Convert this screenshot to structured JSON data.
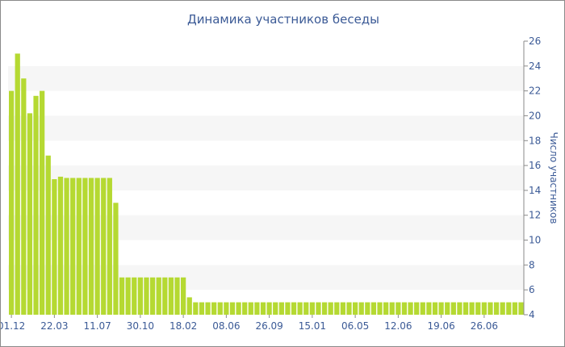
{
  "chart_data": {
    "type": "bar",
    "title": "Динамика участников беседы",
    "xlabel": "",
    "ylabel": "Число участников",
    "ylim": [
      4,
      26
    ],
    "yticks": [
      4,
      6,
      8,
      10,
      12,
      14,
      16,
      18,
      20,
      22,
      24,
      26
    ],
    "y_axis_side": "right",
    "grid": "alternating horizontal bands",
    "bar_color": "#b5d932",
    "band_color": "#f6f6f6",
    "text_color": "#3b5a96",
    "xtick_labels": [
      {
        "label": "01.12",
        "index": 0
      },
      {
        "label": "22.03",
        "index": 7
      },
      {
        "label": "11.07",
        "index": 14
      },
      {
        "label": "30.10",
        "index": 21
      },
      {
        "label": "18.02",
        "index": 28
      },
      {
        "label": "08.06",
        "index": 35
      },
      {
        "label": "26.09",
        "index": 42
      },
      {
        "label": "15.01",
        "index": 49
      },
      {
        "label": "06.05",
        "index": 56
      },
      {
        "label": "12.06",
        "index": 63
      },
      {
        "label": "19.06",
        "index": 70
      },
      {
        "label": "26.06",
        "index": 77
      }
    ],
    "values": [
      22,
      25,
      23,
      20.2,
      21.6,
      22,
      16.8,
      14.9,
      15.1,
      15,
      15,
      15,
      15,
      15,
      15,
      15,
      15,
      13,
      7,
      7,
      7,
      7,
      7,
      7,
      7,
      7,
      7,
      7,
      7,
      5.4,
      5,
      5,
      5,
      5,
      5,
      5,
      5,
      5,
      5,
      5,
      5,
      5,
      5,
      5,
      5,
      5,
      5,
      5,
      5,
      5,
      5,
      5,
      5,
      5,
      5,
      5,
      5,
      5,
      5,
      5,
      5,
      5,
      5,
      5,
      5,
      5,
      5,
      5,
      5,
      5,
      5,
      5,
      5,
      5,
      5,
      5,
      5,
      5,
      5,
      5,
      5,
      5,
      5,
      5
    ]
  }
}
